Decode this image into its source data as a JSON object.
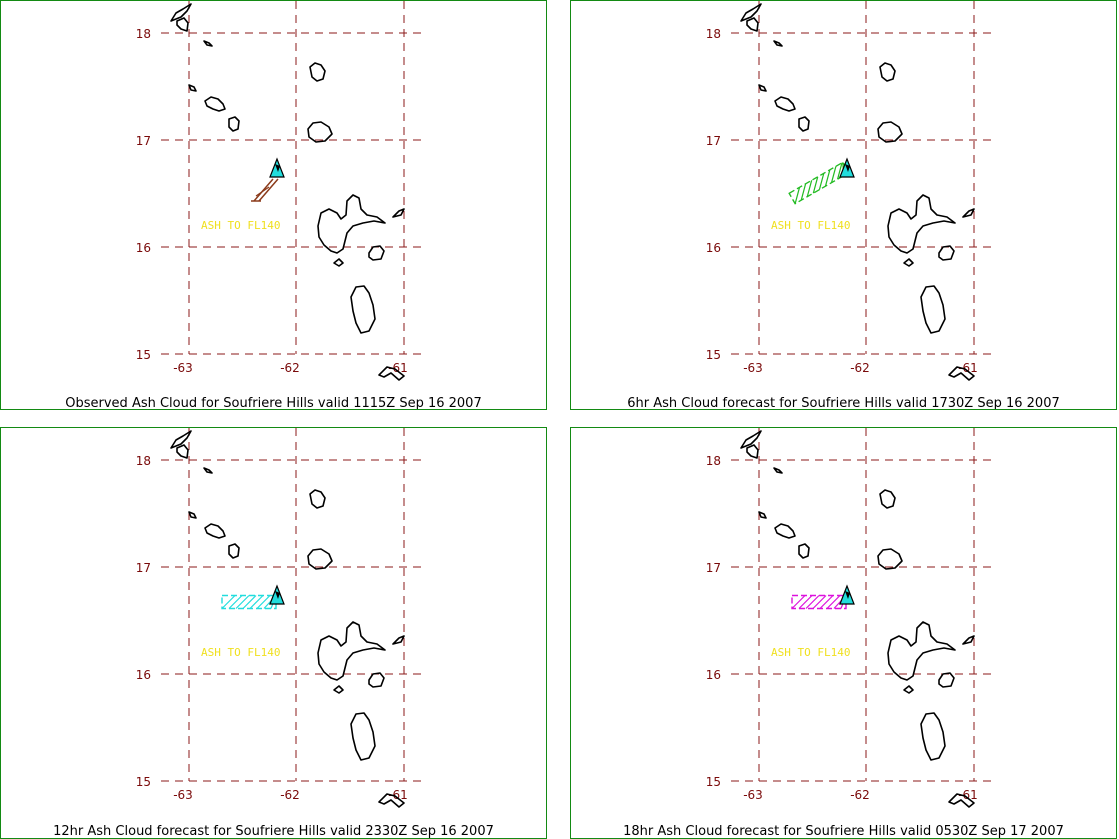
{
  "panels": [
    {
      "caption": "Observed Ash Cloud for Soufriere  Hills valid 1115Z Sep 16 2007",
      "ash_label": "ASH TO FL140",
      "cloud_color": "#8b3a1a",
      "cloud_style": "arrow"
    },
    {
      "caption": "6hr Ash Cloud forecast for Soufriere  Hills valid 1730Z Sep 16 2007",
      "ash_label": "ASH TO FL140",
      "cloud_color": "#22bb22",
      "cloud_style": "diagonal"
    },
    {
      "caption": "12hr Ash Cloud forecast for Soufriere  Hills valid 2330Z Sep 16 2007",
      "ash_label": "ASH TO FL140",
      "cloud_color": "#22dddd",
      "cloud_style": "horizontal"
    },
    {
      "caption": "18hr Ash Cloud forecast for Soufriere  Hills valid 0530Z Sep 17 2007",
      "ash_label": "ASH TO FL140",
      "cloud_color": "#dd11dd",
      "cloud_style": "horizontal"
    }
  ],
  "map": {
    "lat_labels": [
      "18",
      "17",
      "16",
      "15"
    ],
    "lon_labels": [
      "-63",
      "-62",
      "-61"
    ],
    "grid_color": "#8b1a1a",
    "label_color": "#7a0a0a",
    "ash_label_color": "#f0e020",
    "volcano_color": "#22dddd",
    "border_color": "#138a13"
  }
}
